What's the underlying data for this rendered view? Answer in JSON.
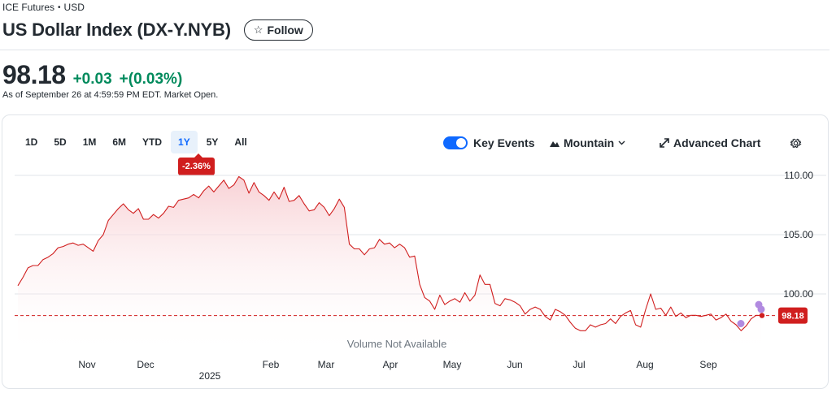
{
  "breadcrumb": {
    "exchange": "ICE Futures",
    "separator": "•",
    "currency": "USD"
  },
  "header": {
    "title": "US Dollar Index (DX-Y.NYB)",
    "follow_label": "Follow"
  },
  "quote": {
    "price": "98.18",
    "change": "+0.03",
    "change_pct": "+(0.03%)",
    "as_of": "As of September 26 at 4:59:59 PM EDT. Market Open."
  },
  "chart_toolbar": {
    "ranges": [
      "1D",
      "5D",
      "1M",
      "6M",
      "YTD",
      "1Y",
      "5Y",
      "All"
    ],
    "active_range": "1Y",
    "range_change_badge": "-2.36%",
    "key_events_label": "Key Events",
    "key_events_on": true,
    "chart_type_label": "Mountain",
    "advanced_label": "Advanced Chart",
    "icons": {
      "settings": "gear-icon",
      "chart_type": "mountain-icon",
      "advanced": "expand-icon",
      "follow": "star-icon"
    }
  },
  "chart_data": {
    "type": "area",
    "y_ticks": [
      "110.00",
      "105.00",
      "100.00"
    ],
    "y_tick_values": [
      110,
      105,
      100
    ],
    "ylim": [
      96,
      112
    ],
    "x_ticks": [
      "Nov",
      "Dec",
      "Feb",
      "Mar",
      "Apr",
      "May",
      "Jun",
      "Jul",
      "Aug",
      "Sep"
    ],
    "year_label": "2025",
    "current_value": 98.18,
    "current_label": "98.18",
    "volume_note": "Volume Not Available",
    "colors": {
      "line": "#d01e1e",
      "fill_top": "#f8cfd3",
      "event": "#b18ae0",
      "grid": "#e0e4e9"
    },
    "series": [
      {
        "values": [
          100.7,
          101.4,
          102.2,
          102.4,
          102.4,
          102.9,
          103.1,
          103.4,
          103.9,
          104,
          104.2,
          104.3,
          104.1,
          104.2,
          103.9,
          103.6,
          104.5,
          105,
          106.2,
          106.7,
          107.2,
          107.6,
          107.1,
          106.8,
          107.2,
          106.3,
          106.3,
          106.7,
          106.4,
          106.8,
          107.4,
          107.3,
          107.9,
          108,
          108.1,
          108.4,
          108.1,
          108.7,
          109.1,
          108.6,
          109.1,
          109.6,
          108.9,
          109.2,
          109.9,
          109.6,
          108.5,
          109.4,
          108.6,
          108.3,
          107.9,
          108.6,
          108,
          109,
          107.8,
          107.9,
          108.3,
          107.6,
          107,
          107.1,
          107.7,
          107.3,
          106.6,
          107.2,
          108,
          107.3,
          104.2,
          103.8,
          103.8,
          103.3,
          103.8,
          103.9,
          104.6,
          104.2,
          104.3,
          103.9,
          104.2,
          103.9,
          103.1,
          103.2,
          100.8,
          99.7,
          99.4,
          98.7,
          99.9,
          99.1,
          99.4,
          99.6,
          99.3,
          100.1,
          99.4,
          99.9,
          101.6,
          100.8,
          100.8,
          99.2,
          99,
          99.6,
          99.5,
          99.3,
          99,
          98.3,
          98.7,
          98.9,
          98.7,
          98.1,
          97.8,
          98.7,
          98.5,
          98.2,
          97.6,
          97.1,
          96.9,
          96.9,
          97.4,
          97.2,
          97.4,
          97.5,
          97.9,
          97.5,
          98.1,
          98.4,
          98.6,
          97.4,
          97.2,
          98.7,
          100,
          98.7,
          98.8,
          98.2,
          98.9,
          98.1,
          98.4,
          98,
          98.2,
          98.2,
          98.1,
          98.2,
          98.3,
          97.8,
          98,
          98.3,
          97.7,
          97.4,
          96.9,
          97.3,
          97.9,
          98.2,
          98.18
        ]
      }
    ],
    "event_values": [
      97.5,
      99.1,
      98.7
    ]
  }
}
